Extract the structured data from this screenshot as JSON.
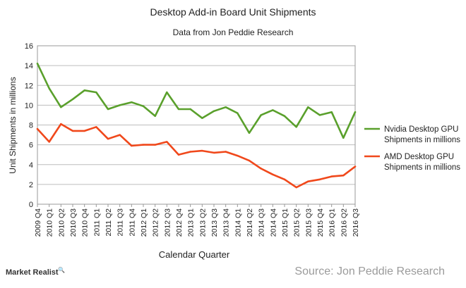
{
  "chart_data": {
    "type": "line",
    "title": "Desktop Add-in Board Unit Shipments",
    "subtitle": "Data from Jon Peddie Research",
    "xlabel": "Calendar Quarter",
    "ylabel": "Unit Shipments in millions",
    "ylim": [
      0,
      16
    ],
    "yticks": [
      0,
      2,
      4,
      6,
      8,
      10,
      12,
      14,
      16
    ],
    "grid": true,
    "legend_position": "right",
    "categories": [
      "2009 Q4",
      "2010 Q1",
      "2010 Q2",
      "2010 Q3",
      "2010 Q4",
      "2011 Q1",
      "2011 Q2",
      "2011 Q3",
      "2011 Q4",
      "2012 Q1",
      "2012 Q2",
      "2012 Q3",
      "2012 Q4",
      "2013 Q1",
      "2013 Q2",
      "2013 Q3",
      "2013 Q4",
      "2014 Q1",
      "2014 Q2",
      "2014 Q3",
      "2014 Q4",
      "2015 Q1",
      "2015 Q2",
      "2015 Q3",
      "2015 Q4",
      "2016 Q1",
      "2016 Q2",
      "2016 Q3"
    ],
    "series": [
      {
        "name_lines": [
          "Nvidia Desktop GPU",
          "Shipments in millions"
        ],
        "color": "#5aa02c",
        "values": [
          14.2,
          11.7,
          9.8,
          10.6,
          11.5,
          11.3,
          9.6,
          10.0,
          10.3,
          9.9,
          8.9,
          11.3,
          9.6,
          9.6,
          8.7,
          9.4,
          9.8,
          9.2,
          7.2,
          9.0,
          9.5,
          8.9,
          7.8,
          9.8,
          9.0,
          9.3,
          6.7,
          9.3
        ]
      },
      {
        "name_lines": [
          "AMD Desktop GPU",
          "Shipments in millions"
        ],
        "color": "#f0481b",
        "values": [
          7.6,
          6.3,
          8.1,
          7.4,
          7.4,
          7.8,
          6.6,
          7.0,
          5.9,
          6.0,
          6.0,
          6.3,
          5.0,
          5.3,
          5.4,
          5.2,
          5.3,
          4.9,
          4.4,
          3.6,
          3.0,
          2.5,
          1.7,
          2.3,
          2.5,
          2.8,
          2.9,
          3.8
        ]
      }
    ]
  },
  "footer": {
    "brand": "Market Realist",
    "brand_mark": "🔍",
    "source": "Source: Jon Peddie Research"
  }
}
